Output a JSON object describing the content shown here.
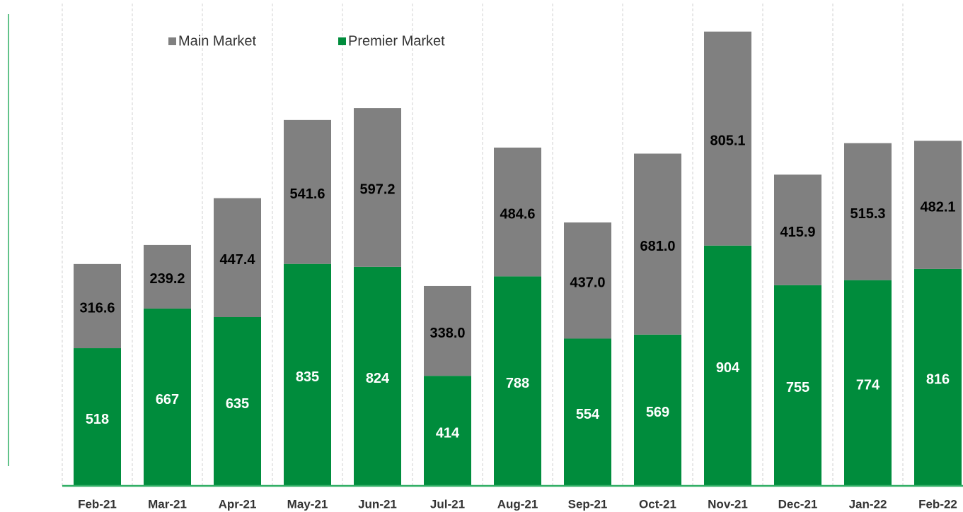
{
  "chart_data": {
    "type": "stacked_bar",
    "categories": [
      "Feb-21",
      "Mar-21",
      "Apr-21",
      "May-21",
      "Jun-21",
      "Jul-21",
      "Aug-21",
      "Sep-21",
      "Oct-21",
      "Nov-21",
      "Dec-21",
      "Jan-22",
      "Feb-22"
    ],
    "series": [
      {
        "name": "Premier Market",
        "color": "#008c3c",
        "label_color": "#ffffff",
        "values": [
          518,
          667,
          635,
          835,
          824,
          414,
          788,
          554,
          569,
          904,
          755,
          774,
          816
        ]
      },
      {
        "name": "Main Market",
        "color": "#808080",
        "label_color": "#000000",
        "values": [
          316.6,
          239.2,
          447.4,
          541.6,
          597.2,
          338.0,
          484.6,
          437.0,
          681.0,
          805.1,
          415.9,
          515.3,
          482.1
        ],
        "value_labels": [
          "316.6",
          "239.2",
          "447.4",
          "541.6",
          "597.2",
          "338.0",
          "484.6",
          "437.0",
          "681.0",
          "805.1",
          "415.9",
          "515.3",
          "482.1"
        ]
      }
    ],
    "legend_order": [
      1,
      0
    ],
    "ylim": [
      0,
      1800
    ],
    "grid": true
  }
}
